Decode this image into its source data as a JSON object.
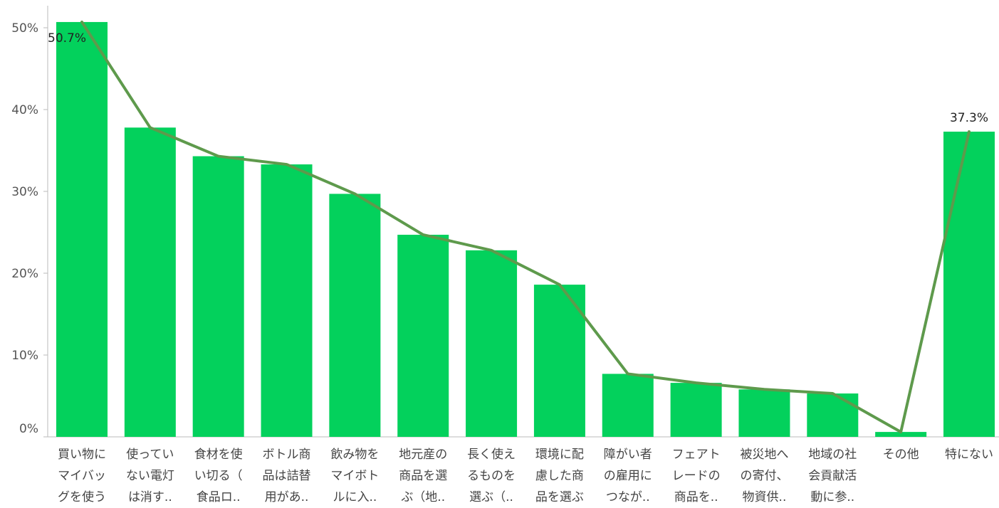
{
  "colors": {
    "bar": "#03D15C",
    "line": "#5E9A4C",
    "axis": "#BBBBBB",
    "text": "#444444"
  },
  "chart_data": {
    "type": "bar",
    "title": "",
    "xlabel": "",
    "ylabel": "",
    "ylim": [
      0,
      52
    ],
    "yticks": [
      "0%",
      "10%",
      "20%",
      "30%",
      "40%",
      "50%"
    ],
    "ytick_values": [
      0,
      10,
      20,
      30,
      40,
      50
    ],
    "grid": false,
    "legend": "none",
    "categories": [
      [
        "買い物に",
        "マイバッ",
        "グを使う"
      ],
      [
        "使ってい",
        "ない電灯",
        "は消す.."
      ],
      [
        "食材を使",
        "い切る（",
        "食品ロ.."
      ],
      [
        "ボトル商",
        "品は詰替",
        "用があ.."
      ],
      [
        "飲み物を",
        "マイボト",
        "ルに入.."
      ],
      [
        "地元産の",
        "商品を選",
        "ぶ（地.."
      ],
      [
        "長く使え",
        "るものを",
        "選ぶ（.."
      ],
      [
        "環境に配",
        "慮した商",
        "品を選ぶ"
      ],
      [
        "障がい者",
        "の雇用に",
        "つなが.."
      ],
      [
        "フェアト",
        "レードの",
        "商品を.."
      ],
      [
        "被災地へ",
        "の寄付、",
        "物資供.."
      ],
      [
        "地域の社",
        "会貢献活",
        "動に参.."
      ],
      [
        "その他"
      ],
      [
        "特にない"
      ]
    ],
    "series": [
      {
        "type": "bar",
        "values": [
          50.7,
          37.8,
          34.3,
          33.3,
          29.7,
          24.7,
          22.8,
          18.6,
          7.7,
          6.6,
          5.8,
          5.3,
          0.6,
          37.3
        ]
      },
      {
        "type": "line",
        "values": [
          50.7,
          37.8,
          34.3,
          33.3,
          29.7,
          24.7,
          22.8,
          18.6,
          7.7,
          6.6,
          5.8,
          5.3,
          0.6,
          37.3
        ]
      }
    ],
    "data_labels": [
      {
        "index": 0,
        "text": "50.7%"
      },
      {
        "index": 13,
        "text": "37.3%"
      }
    ]
  }
}
